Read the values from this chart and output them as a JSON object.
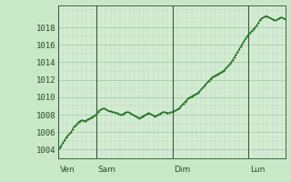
{
  "background_color": "#c8e8c8",
  "plot_bg_color": "#d4ecd4",
  "grid_color_major": "#a0c8a0",
  "grid_color_minor": "#b8d8b8",
  "line_color": "#1a6e1a",
  "ylim": [
    1003.0,
    1020.5
  ],
  "yticks": [
    1004,
    1006,
    1008,
    1010,
    1012,
    1014,
    1016,
    1018
  ],
  "day_label_positions_x": [
    0,
    24,
    72,
    120,
    168
  ],
  "day_labels": [
    "Ven",
    "Sam",
    "Dim",
    "Lun"
  ],
  "day_line_x": [
    0,
    24,
    72,
    120,
    168
  ],
  "pressure_data": [
    1004.0,
    1004.2,
    1004.5,
    1004.8,
    1005.1,
    1005.4,
    1005.6,
    1005.8,
    1006.0,
    1006.3,
    1006.6,
    1006.8,
    1007.0,
    1007.2,
    1007.3,
    1007.4,
    1007.3,
    1007.3,
    1007.4,
    1007.5,
    1007.6,
    1007.7,
    1007.8,
    1007.9,
    1008.1,
    1008.3,
    1008.5,
    1008.6,
    1008.7,
    1008.7,
    1008.6,
    1008.5,
    1008.4,
    1008.4,
    1008.3,
    1008.3,
    1008.2,
    1008.2,
    1008.1,
    1008.0,
    1008.0,
    1008.1,
    1008.2,
    1008.3,
    1008.3,
    1008.2,
    1008.1,
    1008.0,
    1007.9,
    1007.8,
    1007.7,
    1007.6,
    1007.7,
    1007.8,
    1007.9,
    1008.0,
    1008.1,
    1008.2,
    1008.1,
    1008.0,
    1007.9,
    1007.8,
    1007.9,
    1008.0,
    1008.1,
    1008.2,
    1008.3,
    1008.3,
    1008.2,
    1008.2,
    1008.2,
    1008.3,
    1008.3,
    1008.4,
    1008.5,
    1008.6,
    1008.7,
    1008.9,
    1009.1,
    1009.3,
    1009.5,
    1009.7,
    1009.9,
    1010.0,
    1010.1,
    1010.2,
    1010.3,
    1010.4,
    1010.5,
    1010.7,
    1010.9,
    1011.1,
    1011.3,
    1011.5,
    1011.7,
    1011.9,
    1012.1,
    1012.3,
    1012.4,
    1012.5,
    1012.6,
    1012.7,
    1012.8,
    1012.9,
    1013.0,
    1013.2,
    1013.4,
    1013.6,
    1013.8,
    1014.0,
    1014.3,
    1014.6,
    1014.9,
    1015.2,
    1015.5,
    1015.8,
    1016.1,
    1016.4,
    1016.7,
    1017.0,
    1017.2,
    1017.4,
    1017.6,
    1017.8,
    1018.0,
    1018.2,
    1018.5,
    1018.8,
    1019.0,
    1019.1,
    1019.2,
    1019.3,
    1019.2,
    1019.1,
    1019.0,
    1018.9,
    1018.8,
    1018.8,
    1018.9,
    1019.0,
    1019.1,
    1019.1,
    1019.0,
    1018.9
  ],
  "tick_fontsize": 6.5,
  "linewidth": 0.8,
  "markersize": 2.0
}
